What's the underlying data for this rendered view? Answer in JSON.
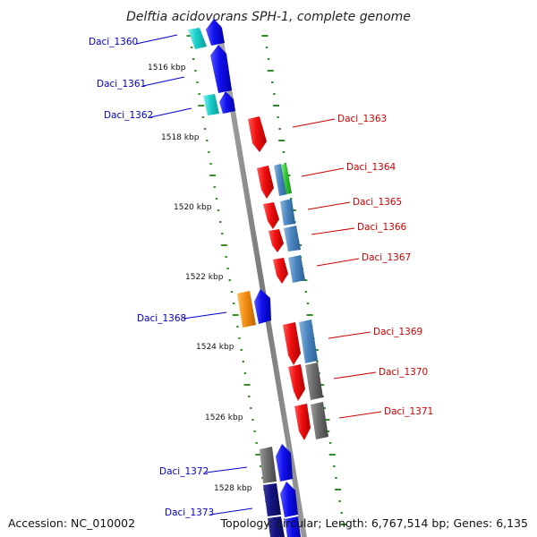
{
  "title": "Delftia acidovorans SPH-1, complete genome",
  "accession_label": "Accession:",
  "accession": "NC_010002",
  "topology_label": "Topology:",
  "topology": "circular",
  "length_label": "Length:",
  "length": "6,767,514 bp",
  "genes_label": "Genes:",
  "genes": "6,135",
  "colors": {
    "backbone": "#888888",
    "forward_tick": "#3b8f2b",
    "reverse_tick": "#2f8a2b",
    "forward_label": "#0000cc",
    "reverse_label": "#cc0000"
  },
  "scale": {
    "unit": "kbp",
    "labels": [
      "1516 kbp",
      "1518 kbp",
      "1520 kbp",
      "1522 kbp",
      "1524 kbp",
      "1526 kbp",
      "1528 kbp"
    ]
  },
  "labeled_genes": [
    {
      "name": "Daci_1360",
      "strand": "forward"
    },
    {
      "name": "Daci_1361",
      "strand": "forward"
    },
    {
      "name": "Daci_1362",
      "strand": "forward"
    },
    {
      "name": "Daci_1363",
      "strand": "reverse"
    },
    {
      "name": "Daci_1364",
      "strand": "reverse"
    },
    {
      "name": "Daci_1365",
      "strand": "reverse"
    },
    {
      "name": "Daci_1366",
      "strand": "reverse"
    },
    {
      "name": "Daci_1367",
      "strand": "reverse"
    },
    {
      "name": "Daci_1368",
      "strand": "forward"
    },
    {
      "name": "Daci_1369",
      "strand": "reverse"
    },
    {
      "name": "Daci_1370",
      "strand": "reverse"
    },
    {
      "name": "Daci_1371",
      "strand": "reverse"
    },
    {
      "name": "Daci_1372",
      "strand": "forward"
    },
    {
      "name": "Daci_1373",
      "strand": "forward"
    }
  ]
}
